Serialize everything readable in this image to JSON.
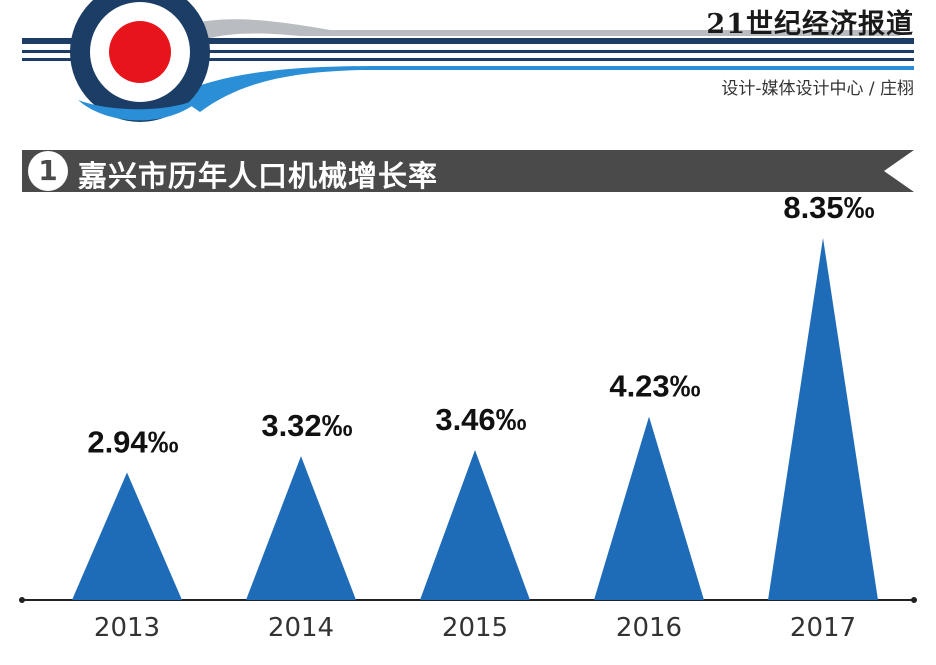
{
  "header": {
    "brand": "21世纪经济报道",
    "credit": "设计-媒体设计中心 / 庄栩"
  },
  "title": {
    "number": "1",
    "text": "嘉兴市历年人口机械增长率"
  },
  "colors": {
    "bar": "#1e6bb8",
    "navy": "#1c3e66",
    "roundel_red": "#e8141b",
    "title_band": "#4a4a4a"
  },
  "chart_data": {
    "type": "bar",
    "title": "嘉兴市历年人口机械增长率",
    "categories": [
      "2013",
      "2014",
      "2015",
      "2016",
      "2017"
    ],
    "values": [
      2.94,
      3.32,
      3.46,
      4.23,
      8.35
    ],
    "data_labels": [
      "2.94‰",
      "3.32‰",
      "3.46‰",
      "4.23‰",
      "8.35‰"
    ],
    "xlabel": "",
    "ylabel": "",
    "ylim": [
      0,
      8.35
    ],
    "grid": false,
    "mark_shape": "triangle"
  }
}
